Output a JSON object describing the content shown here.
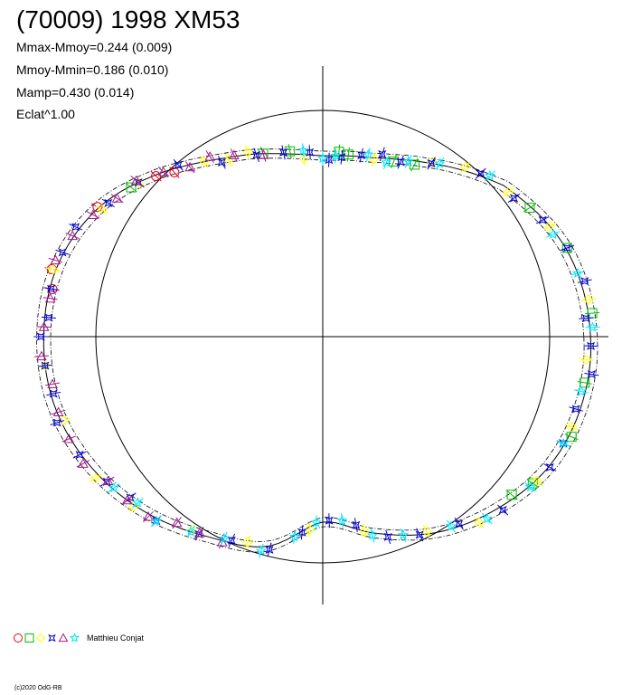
{
  "chart_data": {
    "type": "scatter",
    "title": "(70009) 1998 XM53",
    "projection": "polar light curve (phase angle around origin, radius ~ brightness)",
    "stats": [
      "Mmax-Mmoy=0.244 (0.009)",
      "Mmoy-Mmin=0.186 (0.010)",
      "Mamp=0.430 (0.014)",
      "Eclat^1.00"
    ],
    "reference_circle_radius": 1.0,
    "mean_curve_points_angle_deg_radius": [
      [
        0,
        1.18
      ],
      [
        20,
        1.14
      ],
      [
        40,
        1.04
      ],
      [
        50,
        0.96
      ],
      [
        60,
        0.89
      ],
      [
        72,
        0.83
      ],
      [
        80,
        0.81
      ],
      [
        90,
        0.8
      ],
      [
        100,
        0.82
      ],
      [
        110,
        0.86
      ],
      [
        122,
        0.92
      ],
      [
        135,
        1.02
      ],
      [
        150,
        1.14
      ],
      [
        165,
        1.21
      ],
      [
        180,
        1.23
      ],
      [
        195,
        1.22
      ],
      [
        210,
        1.17
      ],
      [
        225,
        1.1
      ],
      [
        240,
        1.02
      ],
      [
        255,
        0.96
      ],
      [
        270,
        0.82
      ],
      [
        285,
        0.9
      ],
      [
        300,
        1.0
      ],
      [
        315,
        1.08
      ],
      [
        330,
        1.15
      ],
      [
        345,
        1.18
      ]
    ],
    "series": [
      {
        "symbol": "circle",
        "color": "#e8001c",
        "angles_deg": [
          132,
          136,
          150,
          166,
          170
        ]
      },
      {
        "symbol": "square",
        "color": "#00c000",
        "angles_deg": [
          82,
          85,
          68,
          108,
          100,
          62,
          32,
          20,
          5,
          350,
          325,
          338,
          320,
          142
        ]
      },
      {
        "symbol": "diamond",
        "color": "#ffff00",
        "angles_deg": [
          118,
          124,
          112,
          96,
          74,
          58,
          50,
          38,
          26,
          8,
          355,
          340,
          326,
          310,
          298,
          282,
          266,
          250,
          236,
          222,
          212,
          198,
          186,
          166,
          150,
          140
        ]
      },
      {
        "symbol": "star4",
        "color": "#0000cc",
        "angles_deg": [
          94,
          88,
          84,
          78,
          72,
          66,
          58,
          46,
          36,
          28,
          20,
          12,
          4,
          358,
          352,
          344,
          336,
          330,
          316,
          306,
          296,
          288,
          280,
          272,
          264,
          256,
          246,
          238,
          228,
          220,
          214,
          206,
          198,
          192,
          186,
          180,
          176,
          170,
          162,
          156,
          148,
          140,
          130,
          120,
          110,
          102
        ]
      },
      {
        "symbol": "triangle",
        "color": "#a01c8c",
        "angles_deg": [
          108,
          116,
          122,
          128,
          134,
          140,
          146,
          152,
          158,
          164,
          172,
          178,
          184,
          190,
          196,
          202,
          208,
          214,
          220,
          226,
          232,
          238,
          244
        ]
      },
      {
        "symbol": "star5",
        "color": "#00e5ff",
        "angles_deg": [
          96,
          90,
          86,
          76,
          70,
          64,
          56,
          44,
          24,
          14,
          2,
          348,
          336,
          324,
          312,
          304,
          292,
          284,
          276,
          268,
          262,
          254,
          244,
          236,
          228,
          222,
          216
        ]
      }
    ]
  },
  "legend": {
    "observer": "Matthieu Conjat"
  },
  "footer": {
    "copyright": "(c)2020 OdG-RB"
  }
}
